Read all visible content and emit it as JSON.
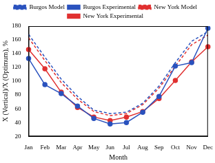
{
  "chart_data": {
    "type": "line",
    "x_label": "Month",
    "y_label": "X (Vertical)/X (Optimum), %",
    "categories": [
      "Jan",
      "Feb",
      "Mar",
      "Apr",
      "May",
      "Jun",
      "Jul",
      "Aug",
      "Sep",
      "Oct",
      "Nov",
      "Dec"
    ],
    "series": [
      {
        "name": "Burgos Model",
        "color": "#2a52be",
        "marker": "none",
        "line_style": "dashed",
        "values": [
          168,
          135,
          103,
          78,
          58,
          53,
          55,
          68,
          93,
          127,
          158,
          172
        ]
      },
      {
        "name": "Burgos Experimental",
        "color": "#2a52be",
        "marker": "circle",
        "line_style": "solid",
        "values": [
          133,
          95,
          82,
          64,
          46,
          38,
          40,
          55,
          78,
          122,
          127,
          177
        ]
      },
      {
        "name": "New York Model",
        "color": "#e03030",
        "marker": "none",
        "line_style": "dashed",
        "values": [
          163,
          130,
          98,
          74,
          56,
          50,
          53,
          66,
          90,
          122,
          153,
          167
        ]
      },
      {
        "name": "New York Experimental",
        "color": "#e03030",
        "marker": "circle",
        "line_style": "solid",
        "values": [
          146,
          118,
          84,
          62,
          48,
          43,
          48,
          56,
          75,
          101,
          128,
          150
        ]
      }
    ],
    "ylim": [
      20,
      180
    ],
    "yticks": [
      20,
      40,
      60,
      80,
      100,
      120,
      140,
      160,
      180
    ],
    "grid": false,
    "legend": "top"
  }
}
